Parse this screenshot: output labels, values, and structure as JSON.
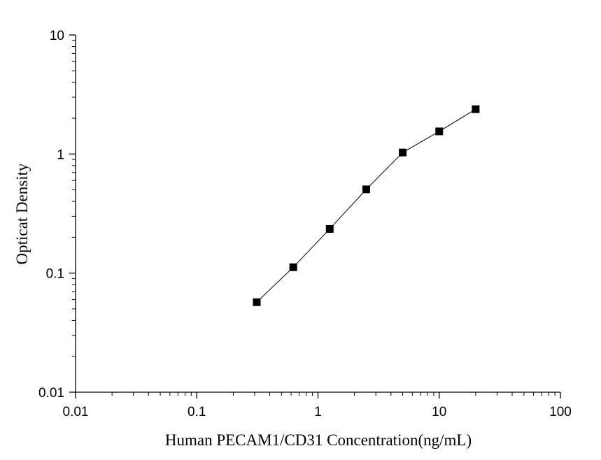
{
  "chart_data": {
    "type": "scatter",
    "title": "",
    "xlabel": "Human PECAM1/CD31  Concentration(ng/mL)",
    "ylabel": "Opticat Density",
    "xscale": "log",
    "yscale": "log",
    "xlim": [
      0.01,
      100
    ],
    "ylim": [
      0.01,
      10
    ],
    "xticks": [
      0.01,
      0.1,
      1,
      10,
      100
    ],
    "xtick_labels": [
      "0.01",
      "0.1",
      "1",
      "10",
      "100"
    ],
    "yticks": [
      0.01,
      0.1,
      1,
      10
    ],
    "ytick_labels": [
      "0.01",
      "0.1",
      "1",
      "10"
    ],
    "grid": false,
    "legend": "none",
    "marker": "square",
    "line": true,
    "series": [
      {
        "x": [
          0.3125,
          0.625,
          1.25,
          2.5,
          5,
          10,
          20
        ],
        "y": [
          0.057,
          0.112,
          0.235,
          0.505,
          1.03,
          1.55,
          2.38
        ]
      }
    ],
    "colors": {
      "axis": "#000000",
      "marker": "#000000",
      "line": "#000000"
    }
  }
}
